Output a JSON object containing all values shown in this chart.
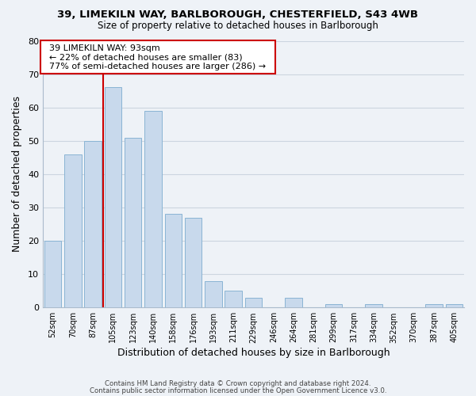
{
  "title_line1": "39, LIMEKILN WAY, BARLBOROUGH, CHESTERFIELD, S43 4WB",
  "title_line2": "Size of property relative to detached houses in Barlborough",
  "xlabel": "Distribution of detached houses by size in Barlborough",
  "ylabel": "Number of detached properties",
  "bar_labels": [
    "52sqm",
    "70sqm",
    "87sqm",
    "105sqm",
    "123sqm",
    "140sqm",
    "158sqm",
    "176sqm",
    "193sqm",
    "211sqm",
    "229sqm",
    "246sqm",
    "264sqm",
    "281sqm",
    "299sqm",
    "317sqm",
    "334sqm",
    "352sqm",
    "370sqm",
    "387sqm",
    "405sqm"
  ],
  "bar_heights": [
    20,
    46,
    50,
    66,
    51,
    59,
    28,
    27,
    8,
    5,
    3,
    0,
    3,
    0,
    1,
    0,
    1,
    0,
    0,
    1,
    1
  ],
  "bar_color": "#c8d9ec",
  "bar_edge_color": "#8ab4d4",
  "grid_color": "#ccd5e0",
  "background_color": "#eef2f7",
  "vline_x": 2.5,
  "vline_color": "#cc0000",
  "annotation_title": "39 LIMEKILN WAY: 93sqm",
  "annotation_line1": "← 22% of detached houses are smaller (83)",
  "annotation_line2": "77% of semi-detached houses are larger (286) →",
  "annotation_box_color": "#ffffff",
  "annotation_box_edge": "#cc0000",
  "ylim": [
    0,
    80
  ],
  "yticks": [
    0,
    10,
    20,
    30,
    40,
    50,
    60,
    70,
    80
  ],
  "footer_line1": "Contains HM Land Registry data © Crown copyright and database right 2024.",
  "footer_line2": "Contains public sector information licensed under the Open Government Licence v3.0."
}
